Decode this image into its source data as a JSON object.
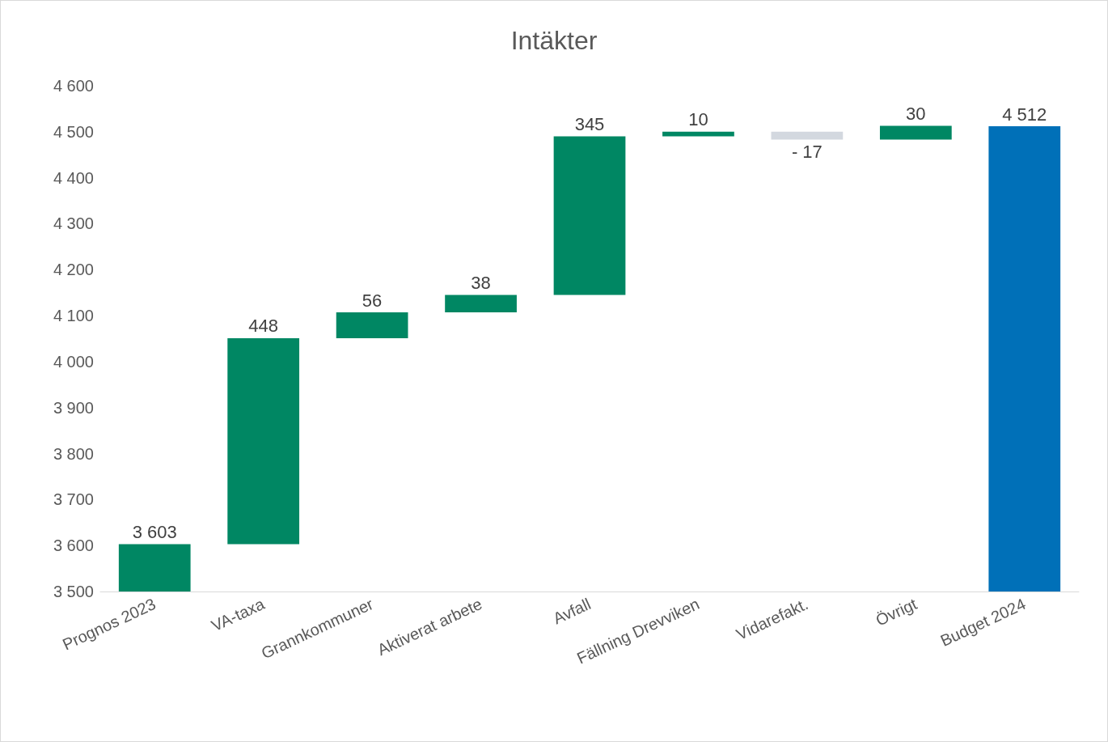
{
  "chart_data": {
    "type": "bar",
    "title": "Intäkter",
    "categories": [
      "Prognos 2023",
      "VA-taxa",
      "Grannkommuner",
      "Aktiverat arbete",
      "Avfall",
      "Fällning Drevviken",
      "Vidarefakt.",
      "Övrigt",
      "Budget 2024"
    ],
    "values": [
      3603,
      448,
      56,
      38,
      345,
      10,
      -17,
      30,
      4512
    ],
    "base": [
      null,
      3603,
      4051,
      4107,
      4145,
      4490,
      4500,
      4483,
      null
    ],
    "colors": [
      "#008763",
      "#008763",
      "#008763",
      "#008763",
      "#008763",
      "#008763",
      "#d3d8df",
      "#008763",
      "#0070b8"
    ],
    "value_labels": [
      "3 603",
      "448",
      "56",
      "38",
      "345",
      "10",
      "- 17",
      "30",
      "4 512"
    ],
    "ylim": [
      3500,
      4600
    ],
    "yticks": [
      {
        "value": 3500,
        "label": "3 500"
      },
      {
        "value": 3600,
        "label": "3 600"
      },
      {
        "value": 3700,
        "label": "3 700"
      },
      {
        "value": 3800,
        "label": "3 800"
      },
      {
        "value": 3900,
        "label": "3 900"
      },
      {
        "value": 4000,
        "label": "4 000"
      },
      {
        "value": 4100,
        "label": "4 100"
      },
      {
        "value": 4200,
        "label": "4 200"
      },
      {
        "value": 4300,
        "label": "4 300"
      },
      {
        "value": 4400,
        "label": "4 400"
      },
      {
        "value": 4500,
        "label": "4 500"
      },
      {
        "value": 4600,
        "label": "4 600"
      }
    ],
    "grid": false
  }
}
